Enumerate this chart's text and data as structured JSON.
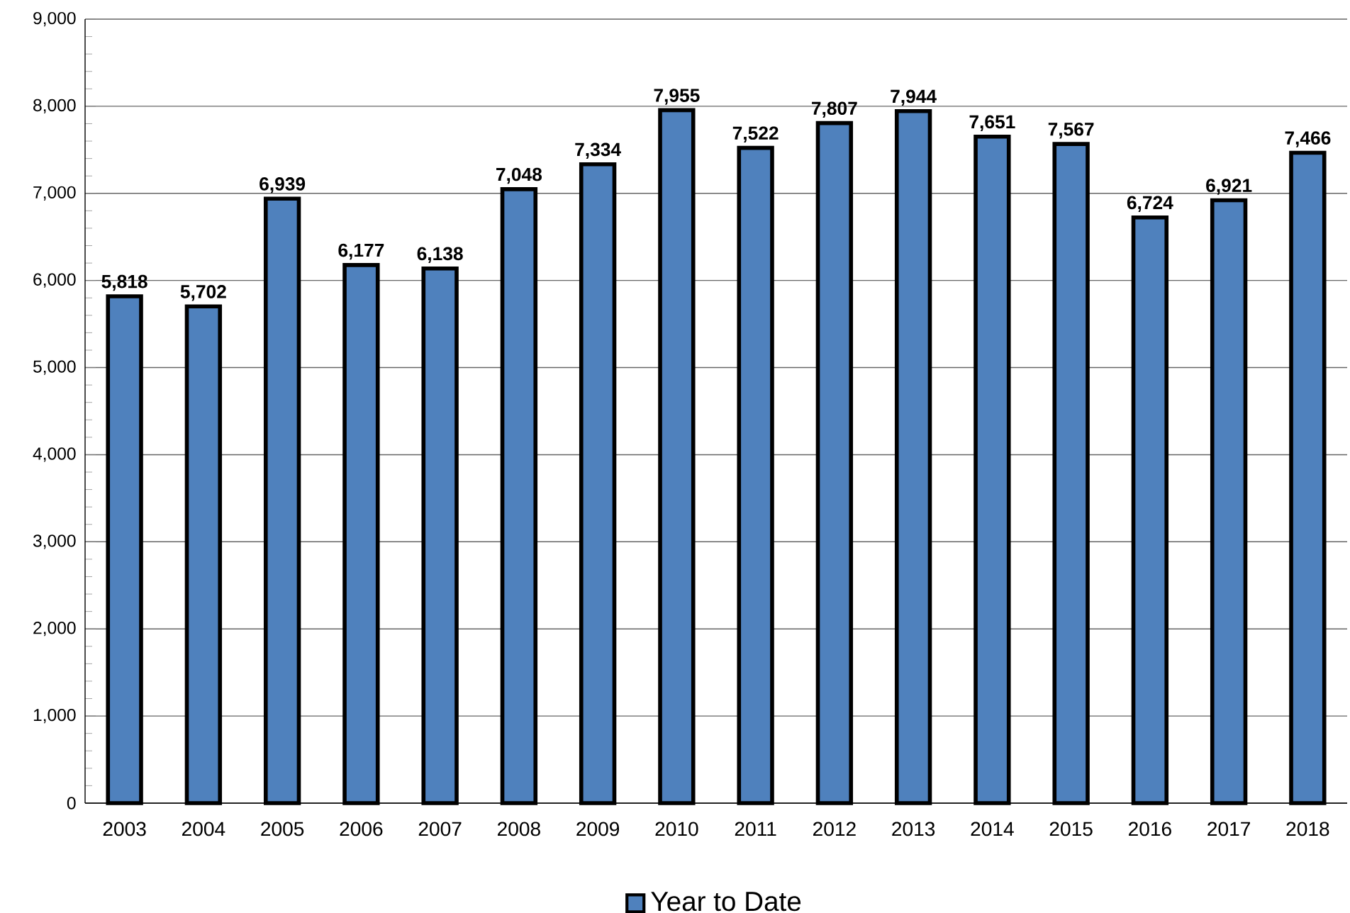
{
  "chart_data": {
    "type": "bar",
    "categories": [
      "2003",
      "2004",
      "2005",
      "2006",
      "2007",
      "2008",
      "2009",
      "2010",
      "2011",
      "2012",
      "2013",
      "2014",
      "2015",
      "2016",
      "2017",
      "2018"
    ],
    "series": [
      {
        "name": "Year to Date",
        "color": "#4f81bd",
        "values": [
          5818,
          5702,
          6939,
          6177,
          6138,
          7048,
          7334,
          7955,
          7522,
          7807,
          7944,
          7651,
          7567,
          6724,
          6921,
          7466
        ],
        "value_labels": [
          "5,818",
          "5,702",
          "6,939",
          "6,177",
          "6,138",
          "7,048",
          "7,334",
          "7,955",
          "7,522",
          "7,807",
          "7,944",
          "7,651",
          "7,567",
          "6,724",
          "6,921",
          "7,466"
        ]
      }
    ],
    "ylim": [
      0,
      9000
    ],
    "yticks": [
      0,
      {
        "value": 1000,
        "label": "1,000"
      },
      {
        "value": 2000,
        "label": "2,000"
      },
      {
        "value": 3000,
        "label": "3,000"
      },
      {
        "value": 4000,
        "label": "4,000"
      },
      {
        "value": 5000,
        "label": "5,000"
      },
      {
        "value": 6000,
        "label": "6,000"
      },
      {
        "value": 7000,
        "label": "7,000"
      },
      {
        "value": 8000,
        "label": "8,000"
      },
      {
        "value": 9000,
        "label": "9,000"
      }
    ],
    "grid": "y",
    "legend": "bottom"
  }
}
